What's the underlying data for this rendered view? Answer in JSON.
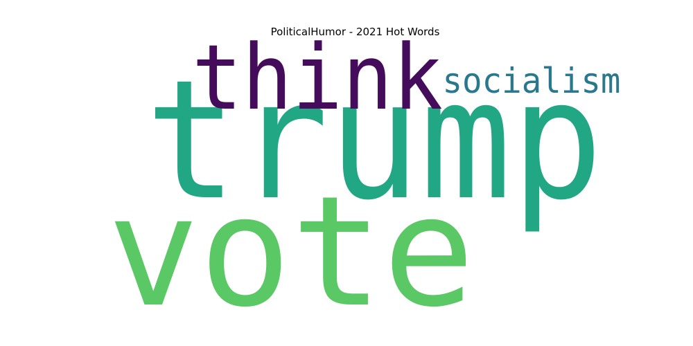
{
  "chart_data": {
    "type": "wordcloud",
    "title": "PoliticalHumor - 2021 Hot Words",
    "words": [
      {
        "text": "trump",
        "weight": 1.0,
        "color": "#22a784"
      },
      {
        "text": "vote",
        "weight": 0.92,
        "color": "#5ac864"
      },
      {
        "text": "think",
        "weight": 0.55,
        "color": "#440c5a"
      },
      {
        "text": "socialism",
        "weight": 0.25,
        "color": "#2a788e"
      }
    ]
  }
}
